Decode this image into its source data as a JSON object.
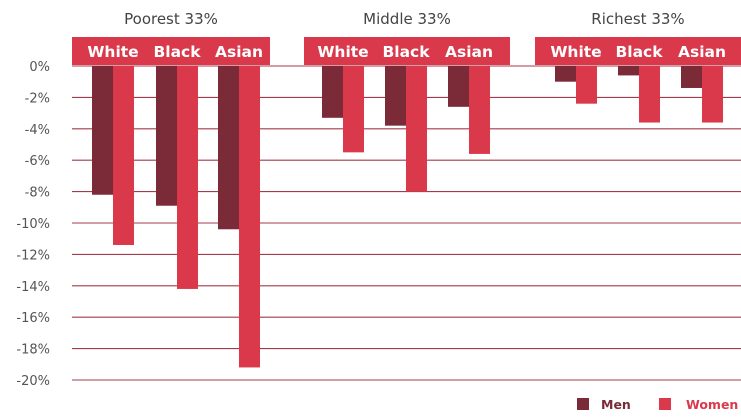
{
  "chart_data": {
    "type": "bar",
    "ylim": [
      -20,
      0
    ],
    "yticks": [
      0,
      -2,
      -4,
      -6,
      -8,
      -10,
      -12,
      -14,
      -16,
      -18,
      -20
    ],
    "ytick_labels": [
      "0%",
      "-2%",
      "-4%",
      "-6%",
      "-8%",
      "-10%",
      "-12%",
      "-14%",
      "-16%",
      "-18%",
      "-20%"
    ],
    "grid": true,
    "legend_position": "bottom-right",
    "colors": {
      "men": "#7b2a37",
      "women": "#d9394a",
      "header": "#d9394a",
      "header_text": "#ffffff",
      "grid": "#a43b48",
      "text": "#555555"
    },
    "groups": [
      {
        "title": "Poorest 33%",
        "categories": [
          "White",
          "Black",
          "Asian"
        ],
        "series": [
          {
            "name": "Men",
            "values": [
              -8.2,
              -8.9,
              -10.4
            ]
          },
          {
            "name": "Women",
            "values": [
              -11.4,
              -14.2,
              -19.2
            ]
          }
        ]
      },
      {
        "title": "Middle 33%",
        "categories": [
          "White",
          "Black",
          "Asian"
        ],
        "series": [
          {
            "name": "Men",
            "values": [
              -3.3,
              -3.8,
              -2.6
            ]
          },
          {
            "name": "Women",
            "values": [
              -5.5,
              -8.0,
              -5.6
            ]
          }
        ]
      },
      {
        "title": "Richest 33%",
        "categories": [
          "White",
          "Black",
          "Asian"
        ],
        "series": [
          {
            "name": "Men",
            "values": [
              -1.0,
              -0.6,
              -1.4
            ]
          },
          {
            "name": "Women",
            "values": [
              -2.4,
              -3.6,
              -3.6
            ]
          }
        ]
      }
    ],
    "legend": [
      {
        "name": "Men",
        "color_key": "men"
      },
      {
        "name": "Women",
        "color_key": "women"
      }
    ]
  }
}
